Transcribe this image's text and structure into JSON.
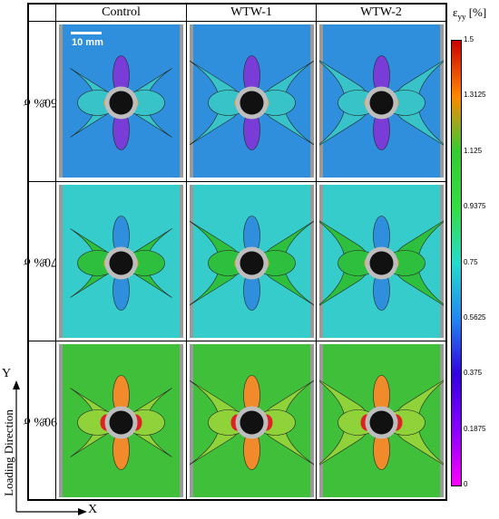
{
  "columns": [
    "Control",
    "WTW-1",
    "WTW-2"
  ],
  "rows": [
    {
      "label": "50% σ",
      "sub": "n"
    },
    {
      "label": "70% σ",
      "sub": "n"
    },
    {
      "label": "90% σ",
      "sub": "n"
    }
  ],
  "scale_bar": "10 mm",
  "colorbar": {
    "symbol": "ε",
    "symbol_sub": "yy",
    "unit": "[%]",
    "ticks": [
      "1.5",
      "1.3125",
      "1.125",
      "0.9375",
      "0.75",
      "0.5625",
      "0.375",
      "0.1875",
      "0"
    ],
    "colors": [
      "#cc0000",
      "#ff8800",
      "#33cc33",
      "#33dd44",
      "#22ddcc",
      "#2288ee",
      "#3300dd",
      "#8800ff",
      "#ff00ff"
    ]
  },
  "axes": {
    "vertical": "Y",
    "horizontal": "X",
    "label": "Loading Direction"
  },
  "panel_colors": {
    "row1": {
      "bg": "#2f8fdc",
      "mid": "#38c3c8",
      "lobe": "#7a3cd6"
    },
    "row2": {
      "bg": "#36cccb",
      "mid": "#2fbf3f",
      "lobe": "#2f8fdc"
    },
    "row3": {
      "bg": "#3fbf3a",
      "mid": "#8fd23a",
      "lobe": "#f08a2a"
    }
  }
}
